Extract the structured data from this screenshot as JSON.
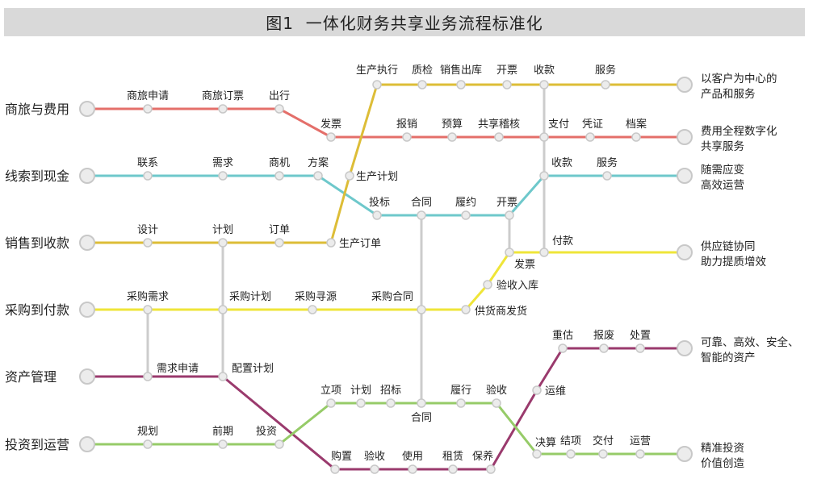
{
  "title": "图1  一体化财务共享业务流程标准化",
  "colors": {
    "red": "#e46f6a",
    "cyan": "#6ec8cb",
    "gold": "#ddbd37",
    "yellow": "#efe538",
    "purple": "#9a3a6d",
    "green": "#96cb68",
    "connector": "#cccccc",
    "node_fill": "#ececec",
    "node_stroke": "#c8c8c8"
  },
  "lines": [
    {
      "name": "商旅与费用",
      "color": "red",
      "stations": [
        "商旅申请",
        "商旅订票",
        "出行",
        "发票",
        "报销",
        "预算",
        "共享稽核",
        "支付",
        "凭证",
        "档案"
      ],
      "end": [
        "费用全程数字化",
        "共享服务"
      ]
    },
    {
      "name": "线索到现金",
      "color": "cyan",
      "stations": [
        "联系",
        "需求",
        "商机",
        "方案",
        "投标",
        "合同",
        "履约",
        "开票",
        "收款",
        "服务"
      ],
      "end": [
        "随需应变",
        "高效运营"
      ]
    },
    {
      "name": "销售到收款",
      "color": "gold",
      "stations": [
        "设计",
        "计划",
        "订单",
        "生产订单",
        "生产计划",
        "生产执行",
        "质检",
        "销售出库",
        "开票",
        "收款",
        "服务"
      ],
      "end": [
        "以客户为中心的",
        "产品和服务"
      ]
    },
    {
      "name": "采购到付款",
      "color": "yellow",
      "stations": [
        "采购需求",
        "采购计划",
        "采购寻源",
        "采购合同",
        "供货商发货",
        "验收入库",
        "发票",
        "付款"
      ],
      "end": [
        "供应链协同",
        "助力提质增效"
      ]
    },
    {
      "name": "资产管理",
      "color": "purple",
      "stations": [
        "需求申请",
        "配置计划",
        "购置",
        "验收",
        "使用",
        "租赁",
        "保养",
        "运维",
        "重估",
        "报废",
        "处置"
      ],
      "end": [
        "可靠、高效、安全、",
        "智能的资产"
      ]
    },
    {
      "name": "投资到运营",
      "color": "green",
      "stations": [
        "规划",
        "前期",
        "投资",
        "立项",
        "计划",
        "招标",
        "合同",
        "履行",
        "验收",
        "决算",
        "结项",
        "交付",
        "运营"
      ],
      "end": [
        "精准投资",
        "价值创造"
      ]
    }
  ]
}
